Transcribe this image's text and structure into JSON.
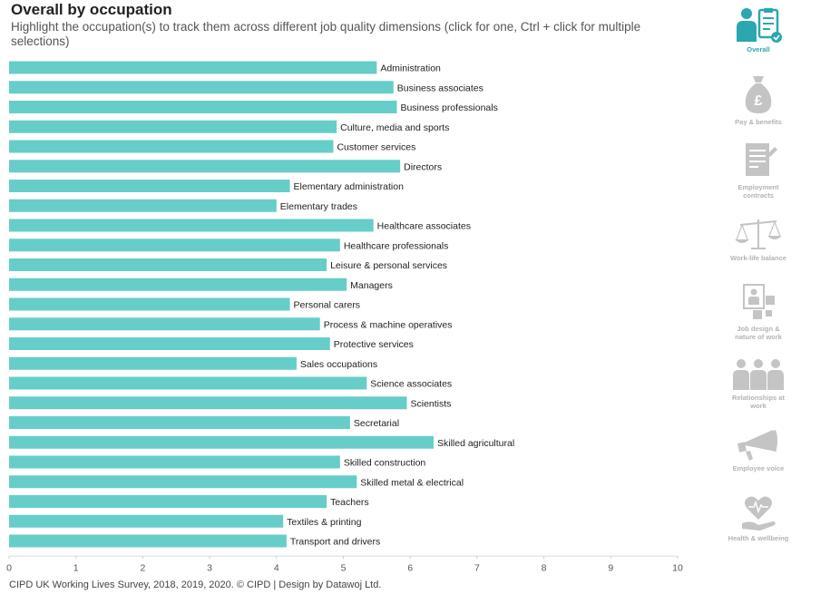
{
  "header": {
    "title": "Overall by occupation",
    "subtitle": "Highlight the occupation(s) to track them across different job quality dimensions (click for one, Ctrl + click for multiple selections)"
  },
  "footer": {
    "credit": "CIPD UK Working Lives Survey, 2018, 2019, 2020. © CIPD | Design by Datawoj Ltd."
  },
  "sidebar": {
    "items": [
      {
        "label": "Overall",
        "icon": "overall-icon",
        "active": true
      },
      {
        "label": "Pay & benefits",
        "icon": "money-bag-icon",
        "active": false
      },
      {
        "label": "Employment contracts",
        "icon": "contract-icon",
        "active": false
      },
      {
        "label": "Work-life balance",
        "icon": "scales-icon",
        "active": false
      },
      {
        "label": "Job design & nature of work",
        "icon": "job-design-icon",
        "active": false
      },
      {
        "label": "Relationships at work",
        "icon": "people-icon",
        "active": false
      },
      {
        "label": "Employee voice",
        "icon": "megaphone-icon",
        "active": false
      },
      {
        "label": "Health & wellbeing",
        "icon": "health-icon",
        "active": false
      }
    ]
  },
  "colors": {
    "bar": "#67cdc8",
    "accent": "#2aa7b0",
    "inactive": "#b3b3b3"
  },
  "chart_data": {
    "type": "bar",
    "orientation": "horizontal",
    "categories": [
      "Administration",
      "Business associates",
      "Business professionals",
      "Culture, media and sports",
      "Customer services",
      "Directors",
      "Elementary administration",
      "Elementary trades",
      "Healthcare associates",
      "Healthcare professionals",
      "Leisure & personal services",
      "Managers",
      "Personal carers",
      "Process & machine operatives",
      "Protective services",
      "Sales occupations",
      "Science associates",
      "Scientists",
      "Secretarial",
      "Skilled agricultural",
      "Skilled construction",
      "Skilled metal & electrical",
      "Teachers",
      "Textiles & printing",
      "Transport and drivers"
    ],
    "values": [
      5.5,
      5.75,
      5.8,
      4.9,
      4.85,
      5.85,
      4.2,
      4.0,
      5.45,
      4.95,
      4.75,
      5.05,
      4.2,
      4.65,
      4.8,
      4.3,
      5.35,
      5.95,
      5.1,
      6.35,
      4.95,
      5.2,
      4.75,
      4.1,
      4.15
    ],
    "xlim": [
      0,
      10
    ],
    "xticks": [
      "0",
      "1",
      "2",
      "3",
      "4",
      "5",
      "6",
      "7",
      "8",
      "9",
      "10"
    ]
  }
}
